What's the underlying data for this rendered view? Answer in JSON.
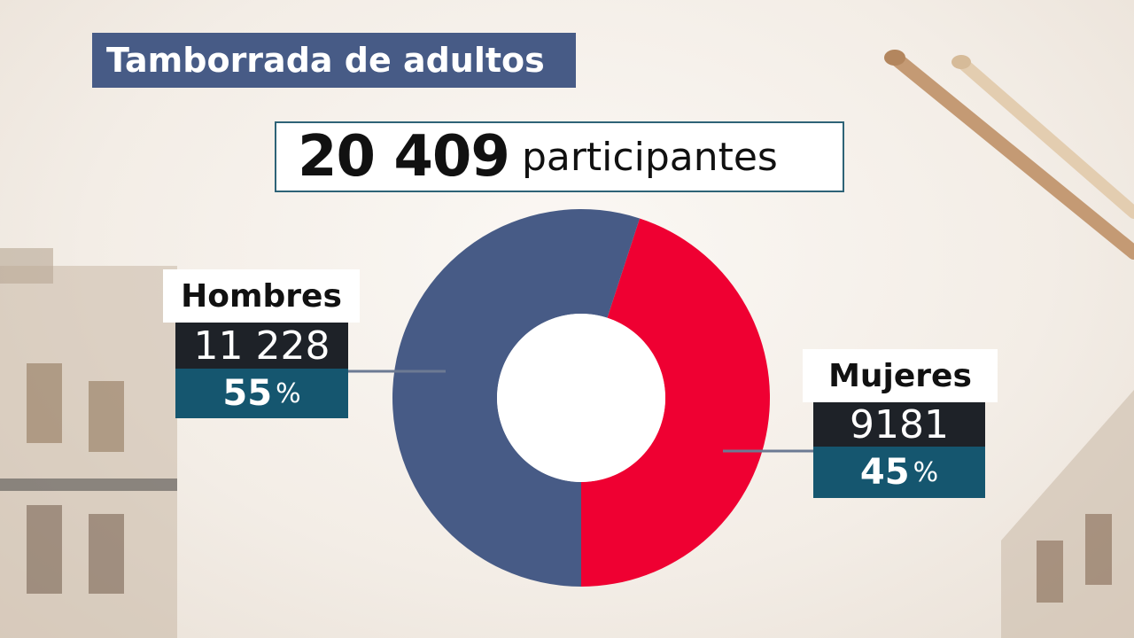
{
  "header": {
    "title": "Tamborrada de adultos",
    "total_number": "20 409",
    "total_label": "participantes"
  },
  "colors": {
    "men": "#475b86",
    "women": "#ef0032",
    "title_bg": "#475b86",
    "count_bg": "#1e2228",
    "pct_bg": "#15566f"
  },
  "labels": {
    "men": {
      "name": "Hombres",
      "count": "11 228",
      "pct": "55",
      "pct_sign": "%"
    },
    "women": {
      "name": "Mujeres",
      "count": "9181",
      "pct": "45",
      "pct_sign": "%"
    }
  },
  "chart_data": {
    "type": "pie",
    "title": "Tamborrada de adultos",
    "total": 20409,
    "categories": [
      "Hombres",
      "Mujeres"
    ],
    "values": [
      11228,
      9181
    ],
    "percentages": [
      55,
      45
    ]
  }
}
